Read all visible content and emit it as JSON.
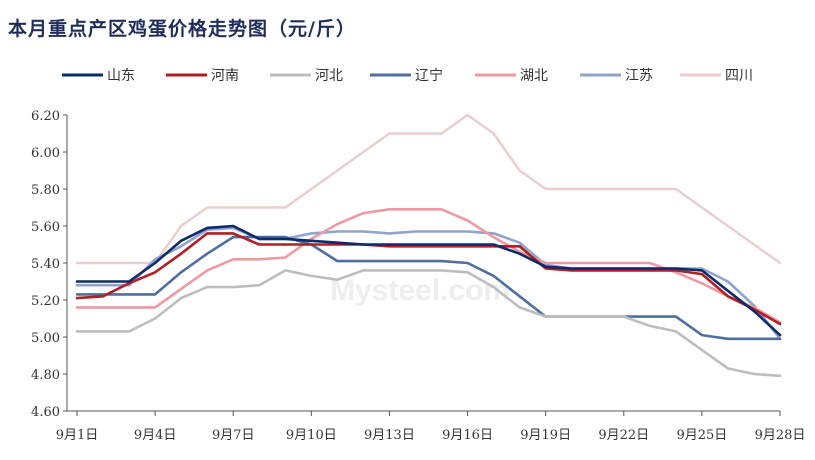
{
  "title": "本月重点产区鸡蛋价格走势图（元/斤）",
  "chart_data": {
    "type": "line",
    "title": "本月重点产区鸡蛋价格走势图（元/斤）",
    "x": [
      "9月1日",
      "9月2日",
      "9月3日",
      "9月4日",
      "9月5日",
      "9月6日",
      "9月7日",
      "9月8日",
      "9月9日",
      "9月10日",
      "9月11日",
      "9月12日",
      "9月13日",
      "9月14日",
      "9月15日",
      "9月16日",
      "9月17日",
      "9月18日",
      "9月19日",
      "9月20日",
      "9月21日",
      "9月22日",
      "9月23日",
      "9月24日",
      "9月25日",
      "9月26日",
      "9月27日",
      "9月28日"
    ],
    "xticks": [
      "9月1日",
      "9月4日",
      "9月7日",
      "9月10日",
      "9月13日",
      "9月16日",
      "9月19日",
      "9月22日",
      "9月25日",
      "9月28日"
    ],
    "ylim": [
      4.6,
      6.2
    ],
    "yticks": [
      "4.60",
      "4.80",
      "5.00",
      "5.20",
      "5.40",
      "5.60",
      "5.80",
      "6.00",
      "6.20"
    ],
    "legend_position": "top",
    "watermark": "Mysteel.com",
    "series": [
      {
        "name": "山东",
        "color": "#0d2a6b",
        "values": [
          5.3,
          5.3,
          5.3,
          5.4,
          5.52,
          5.59,
          5.6,
          5.53,
          5.53,
          5.52,
          5.51,
          5.5,
          5.5,
          5.5,
          5.5,
          5.5,
          5.5,
          5.45,
          5.38,
          5.37,
          5.37,
          5.37,
          5.37,
          5.37,
          5.36,
          5.25,
          5.14,
          5.01
        ]
      },
      {
        "name": "河南",
        "color": "#b01f24",
        "values": [
          5.21,
          5.22,
          5.29,
          5.35,
          5.45,
          5.56,
          5.56,
          5.5,
          5.5,
          5.5,
          5.5,
          5.5,
          5.49,
          5.49,
          5.49,
          5.49,
          5.49,
          5.49,
          5.37,
          5.36,
          5.36,
          5.36,
          5.36,
          5.36,
          5.34,
          5.22,
          5.15,
          5.07
        ]
      },
      {
        "name": "河北",
        "color": "#bdbdbd",
        "values": [
          5.03,
          5.03,
          5.03,
          5.1,
          5.21,
          5.27,
          5.27,
          5.28,
          5.36,
          5.33,
          5.31,
          5.36,
          5.36,
          5.36,
          5.36,
          5.35,
          5.27,
          5.16,
          5.11,
          5.11,
          5.11,
          5.11,
          5.06,
          5.03,
          4.93,
          4.83,
          4.8,
          4.79
        ]
      },
      {
        "name": "辽宁",
        "color": "#4f6fa1",
        "values": [
          5.23,
          5.23,
          5.23,
          5.23,
          5.35,
          5.45,
          5.54,
          5.54,
          5.54,
          5.5,
          5.41,
          5.41,
          5.41,
          5.41,
          5.41,
          5.4,
          5.33,
          5.22,
          5.11,
          5.11,
          5.11,
          5.11,
          5.11,
          5.11,
          5.01,
          4.99,
          4.99,
          4.99
        ]
      },
      {
        "name": "湖北",
        "color": "#ee9aa3",
        "values": [
          5.16,
          5.16,
          5.16,
          5.16,
          5.26,
          5.36,
          5.42,
          5.42,
          5.43,
          5.53,
          5.61,
          5.67,
          5.69,
          5.69,
          5.69,
          5.63,
          5.54,
          5.46,
          5.4,
          5.4,
          5.4,
          5.4,
          5.4,
          5.35,
          5.29,
          5.22,
          5.16,
          5.08
        ]
      },
      {
        "name": "江苏",
        "color": "#8fa3cc",
        "values": [
          5.28,
          5.28,
          5.28,
          5.42,
          5.49,
          5.58,
          5.59,
          5.53,
          5.53,
          5.56,
          5.57,
          5.57,
          5.56,
          5.57,
          5.57,
          5.57,
          5.56,
          5.51,
          5.39,
          5.37,
          5.37,
          5.37,
          5.37,
          5.37,
          5.37,
          5.3,
          5.17,
          4.99
        ]
      },
      {
        "name": "四川",
        "color": "#ebcfcf",
        "values": [
          5.4,
          5.4,
          5.4,
          5.4,
          5.6,
          5.7,
          5.7,
          5.7,
          5.7,
          5.8,
          5.9,
          6.0,
          6.1,
          6.1,
          6.1,
          6.2,
          6.1,
          5.9,
          5.8,
          5.8,
          5.8,
          5.8,
          5.8,
          5.8,
          5.7,
          5.6,
          5.5,
          5.4
        ]
      }
    ]
  }
}
